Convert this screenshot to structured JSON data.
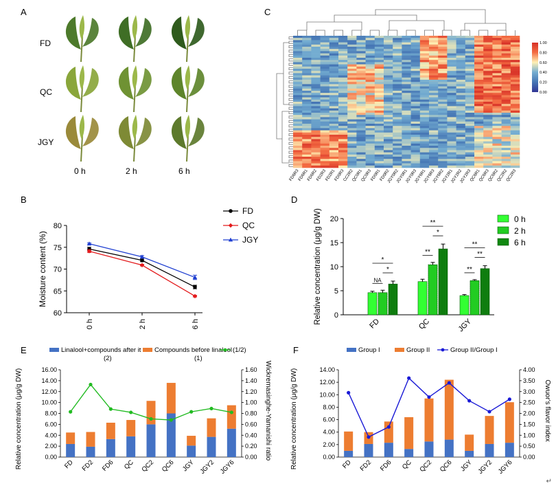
{
  "panels": {
    "A": {
      "label": "A",
      "rows": [
        "FD",
        "QC",
        "JGY"
      ],
      "cols": [
        "0 h",
        "2 h",
        "6 h"
      ],
      "leaf_colors": {
        "FD": [
          "#4d7a2b",
          "#3f6e25",
          "#2f5b1d"
        ],
        "QC": [
          "#8aa63b",
          "#6f9233",
          "#5e852b"
        ],
        "JGY": [
          "#9a8a3a",
          "#7e8a35",
          "#5d7a2c"
        ]
      }
    },
    "B": {
      "label": "B",
      "legend": [
        {
          "name": "FD",
          "color": "#000000",
          "marker": "circle"
        },
        {
          "name": "QC",
          "color": "#e31a1c",
          "marker": "diamond"
        },
        {
          "name": "JGY",
          "color": "#1f3fd1",
          "marker": "triangle"
        }
      ]
    },
    "C": {
      "label": "C",
      "colorbar_ticks": [
        "1.00",
        "0.80",
        "0.60",
        "0.40",
        "0.20",
        "0.00"
      ],
      "columns": [
        "FD6R3",
        "FD6R1",
        "FD6R2",
        "FD2R3",
        "FD2R1",
        "FD0R3",
        "CC2R2",
        "QC0R1",
        "QC0R3",
        "FD0R1",
        "FD0R2",
        "JGY0R2",
        "JGY0R1",
        "JGY0R3",
        "JGY6R1",
        "JGY6R3",
        "JGY6R2",
        "JGY2R1",
        "JGY2R2",
        "JGY2R3",
        "QC6R1",
        "QC6R3",
        "QC6R2",
        "QC2R2",
        "QC2R3"
      ]
    },
    "D": {
      "label": "D",
      "legend": [
        {
          "name": "0 h",
          "color": "#33ff33"
        },
        {
          "name": "2 h",
          "color": "#22cc22"
        },
        {
          "name": "6 h",
          "color": "#118811"
        }
      ],
      "sig_labels": {
        "FD": [
          "NA",
          "*",
          "*"
        ],
        "QC": [
          "**",
          "*",
          "**"
        ],
        "JGY": [
          "**",
          "**",
          "**"
        ]
      }
    },
    "E": {
      "label": "E",
      "legend": [
        {
          "name": "Linalool+compounds after it",
          "sub": "(2)",
          "color": "#4472c4"
        },
        {
          "name": "Compounds before linalool",
          "sub": "(1)",
          "color": "#ed7d31"
        },
        {
          "name": "(1/2)",
          "color": "#22bb22"
        }
      ]
    },
    "F": {
      "label": "F",
      "legend": [
        {
          "name": "Group I",
          "color": "#4472c4"
        },
        {
          "name": "Group II",
          "color": "#ed7d31"
        },
        {
          "name": "Group II/Group I",
          "color": "#1a1ad6"
        }
      ]
    }
  },
  "chart_data": [
    {
      "id": "B",
      "type": "line",
      "categories": [
        "0 h",
        "2 h",
        "6 h"
      ],
      "ylabel": "Moisture content (%)",
      "ylim": [
        60,
        80
      ],
      "yticks": [
        60,
        65,
        70,
        75,
        80
      ],
      "series": [
        {
          "name": "FD",
          "values": [
            74.6,
            72.0,
            65.9
          ],
          "err": [
            0.4,
            0.3,
            0.4
          ]
        },
        {
          "name": "QC",
          "values": [
            74.1,
            70.9,
            63.8
          ],
          "err": [
            0.3,
            0.2,
            0.2
          ]
        },
        {
          "name": "JGY",
          "values": [
            75.8,
            72.8,
            68.1
          ],
          "err": [
            0.2,
            0.3,
            0.5
          ]
        }
      ]
    },
    {
      "id": "D",
      "type": "bar",
      "categories": [
        "FD",
        "QC",
        "JGY"
      ],
      "ylabel": "Relative concentration (μg/g DW)",
      "ylim": [
        0,
        20
      ],
      "yticks": [
        0,
        5,
        10,
        15,
        20
      ],
      "series": [
        {
          "name": "0 h",
          "values": [
            4.6,
            6.9,
            4.0
          ],
          "err": [
            0.3,
            0.5,
            0.2
          ]
        },
        {
          "name": "2 h",
          "values": [
            4.6,
            10.4,
            7.1
          ],
          "err": [
            0.5,
            0.5,
            0.2
          ]
        },
        {
          "name": "6 h",
          "values": [
            6.4,
            13.7,
            9.6
          ],
          "err": [
            0.6,
            1.0,
            0.6
          ]
        }
      ]
    },
    {
      "id": "E",
      "type": "bar",
      "categories": [
        "FD",
        "FD2",
        "FD6",
        "QC",
        "QC2",
        "QC6",
        "JGY",
        "JGY2",
        "JGY6"
      ],
      "ylabel": "Relative concentration (μg/g DW)",
      "y2label": "Wickremasinghe-Yamanishi ratio",
      "ylim": [
        0,
        16
      ],
      "yticks": [
        "0.00",
        "2.00",
        "4.00",
        "6.00",
        "8.00",
        "10.00",
        "12.00",
        "14.00",
        "16.00"
      ],
      "y2lim": [
        0,
        1.6
      ],
      "y2ticks": [
        "0.00",
        "0.20",
        "0.40",
        "0.60",
        "0.80",
        "1.00",
        "1.20",
        "1.40",
        "1.60"
      ],
      "series": [
        {
          "name": "Linalool+compounds after it",
          "values": [
            2.4,
            1.9,
            3.3,
            3.8,
            6.0,
            8.0,
            2.1,
            3.7,
            5.2
          ]
        },
        {
          "name": "Compounds before linalool",
          "values": [
            2.1,
            2.7,
            3.0,
            3.0,
            4.3,
            5.6,
            1.8,
            3.4,
            4.3
          ]
        },
        {
          "name": "(1/2)",
          "axis": "right",
          "values": [
            0.83,
            1.33,
            0.88,
            0.82,
            0.7,
            0.68,
            0.83,
            0.89,
            0.82
          ]
        }
      ]
    },
    {
      "id": "F",
      "type": "bar",
      "categories": [
        "FD",
        "FD2",
        "FD6",
        "QC",
        "QC2",
        "QC6",
        "JGY",
        "JGY2",
        "JGY6"
      ],
      "ylabel": "Relative concentration (μg/g DW)",
      "y2label": "Owuor's flavor index",
      "ylim": [
        0,
        14
      ],
      "yticks": [
        "0.00",
        "2.00",
        "4.00",
        "6.00",
        "8.00",
        "10.00",
        "12.00",
        "14.00"
      ],
      "y2lim": [
        0,
        4
      ],
      "y2ticks": [
        "0.00",
        "0.50",
        "1.00",
        "1.50",
        "2.00",
        "2.50",
        "3.00",
        "3.50",
        "4.00"
      ],
      "series": [
        {
          "name": "Group I",
          "values": [
            1.0,
            2.1,
            2.3,
            1.3,
            2.5,
            2.8,
            1.0,
            2.1,
            2.3
          ]
        },
        {
          "name": "Group II",
          "values": [
            3.1,
            1.9,
            3.4,
            5.1,
            6.9,
            9.6,
            2.6,
            4.5,
            6.5
          ]
        },
        {
          "name": "Group II/Group I",
          "axis": "right",
          "values": [
            2.95,
            0.92,
            1.38,
            3.62,
            2.75,
            3.4,
            2.58,
            2.08,
            2.65
          ]
        }
      ]
    }
  ],
  "footer_mark": "↵"
}
